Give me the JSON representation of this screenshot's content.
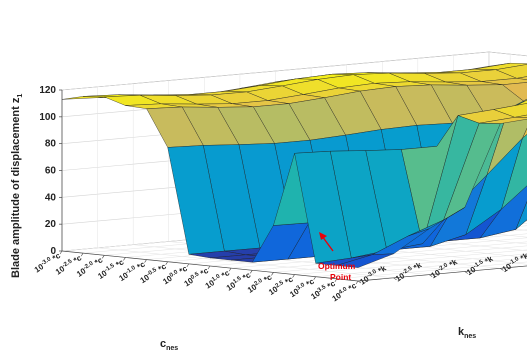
{
  "chart_data": {
    "type": "surface",
    "title": "",
    "zlabel": "Blade amplitude of displacement z",
    "zlabel_sub": "1",
    "xlabel": "c",
    "xlabel_sub": "nes",
    "ylabel": "k",
    "ylabel_sub": "nes",
    "zlim": [
      0,
      120
    ],
    "z_ticks": [
      "0",
      "20",
      "40",
      "60",
      "80",
      "100",
      "120"
    ],
    "z_tick_values": [
      0,
      20,
      40,
      60,
      80,
      100,
      120
    ],
    "c_ticks": [
      "10^-3.0 *c",
      "10^-2.5 *c",
      "10^-2.0 *c",
      "10^-1.5 *c",
      "10^-1.0 *c",
      "10^-0.5 *c",
      "10^0.0 *c",
      "10^0.5 *c",
      "10^1.0 *c",
      "10^1.5 *c",
      "10^2.0 *c",
      "10^2.5 *c",
      "10^3.0 *c",
      "10^3.5 *c",
      "10^4.0 *c"
    ],
    "k_ticks": [
      "10^-3.0 *k",
      "10^-2.5 *k",
      "10^-2.0 *k",
      "10^-1.5 *k",
      "10^-1.0 *k",
      "10^-0.5 *k",
      "10^0.0 *k",
      "10^0.5 *k",
      "10^1.0 *k",
      "10^1.5 *k",
      "10^2.0 *k",
      "10^2.5 *k",
      "10^3.0 *k"
    ],
    "grid": true,
    "colormap": "parula",
    "annotation": {
      "text_line1": "Optimum",
      "text_line2": "Point",
      "color": "#e8000b"
    }
  }
}
